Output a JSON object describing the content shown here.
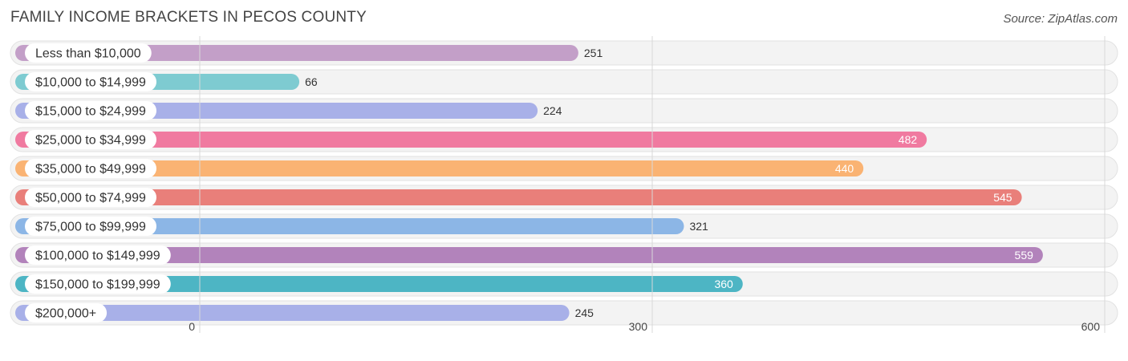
{
  "header": {
    "title": "FAMILY INCOME BRACKETS IN PECOS COUNTY",
    "source": "Source: ZipAtlas.com"
  },
  "chart_data": {
    "type": "bar",
    "orientation": "horizontal",
    "title": "FAMILY INCOME BRACKETS IN PECOS COUNTY",
    "xlabel": "",
    "ylabel": "",
    "categories": [
      "Less than $10,000",
      "$10,000 to $14,999",
      "$15,000 to $24,999",
      "$25,000 to $34,999",
      "$35,000 to $49,999",
      "$50,000 to $74,999",
      "$75,000 to $99,999",
      "$100,000 to $149,999",
      "$150,000 to $199,999",
      "$200,000+"
    ],
    "values": [
      251,
      66,
      224,
      482,
      440,
      545,
      321,
      559,
      360,
      245
    ],
    "colors": [
      "#c39fc8",
      "#7ecbd1",
      "#a8b0e8",
      "#f07aa0",
      "#fab373",
      "#e97f7a",
      "#8cb6e6",
      "#b283bb",
      "#4db5c4",
      "#a8b0e8"
    ],
    "xlim": [
      0,
      600
    ],
    "xticks": [
      0,
      300,
      600
    ],
    "grid": true
  }
}
